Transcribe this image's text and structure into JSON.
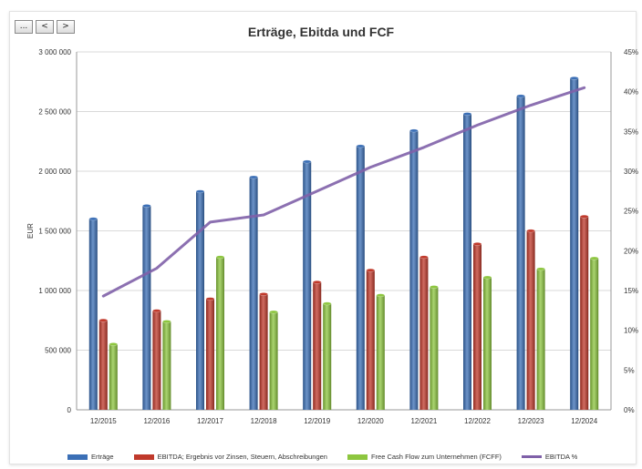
{
  "toolbar": {
    "btn1": "...",
    "btn2": "<",
    "btn3": ">"
  },
  "chart_data": {
    "type": "bar",
    "title": "Erträge, Ebitda und FCF",
    "ylabel": "EUR",
    "y2label": "",
    "ylim": [
      0,
      3000000
    ],
    "y2lim": [
      0,
      0.45
    ],
    "yticks": [
      "0",
      "500 000",
      "1 000 000",
      "1 500 000",
      "2 000 000",
      "2 500 000",
      "3 000 000"
    ],
    "y2ticks": [
      "0%",
      "5%",
      "10%",
      "15%",
      "20%",
      "25%",
      "30%",
      "35%",
      "40%",
      "45%"
    ],
    "categories": [
      "12/2015",
      "12/2016",
      "12/2017",
      "12/2018",
      "12/2019",
      "12/2020",
      "12/2021",
      "12/2022",
      "12/2023",
      "12/2024"
    ],
    "series": [
      {
        "name": "Erträge",
        "type": "bar",
        "color": "#3b6fb6",
        "values": [
          1600000,
          1710000,
          1830000,
          1950000,
          2080000,
          2210000,
          2340000,
          2480000,
          2630000,
          2780000
        ]
      },
      {
        "name": "EBITDA; Ergebnis vor Zinsen, Steuern, Abschreibungen",
        "type": "bar",
        "color": "#c0392b",
        "values": [
          750000,
          830000,
          930000,
          970000,
          1070000,
          1170000,
          1280000,
          1390000,
          1500000,
          1620000
        ]
      },
      {
        "name": "Free Cash Flow zum Unternehmen (FCFF)",
        "type": "bar",
        "color": "#8dc63f",
        "values": [
          550000,
          740000,
          1280000,
          820000,
          890000,
          960000,
          1030000,
          1110000,
          1180000,
          1270000
        ]
      },
      {
        "name": "EBITDA %",
        "type": "line",
        "axis": "right",
        "color": "#7f60a8",
        "values": [
          0.143,
          0.178,
          0.236,
          0.245,
          0.275,
          0.305,
          0.33,
          0.358,
          0.383,
          0.405
        ]
      }
    ],
    "grid": true,
    "legend_position": "bottom"
  }
}
